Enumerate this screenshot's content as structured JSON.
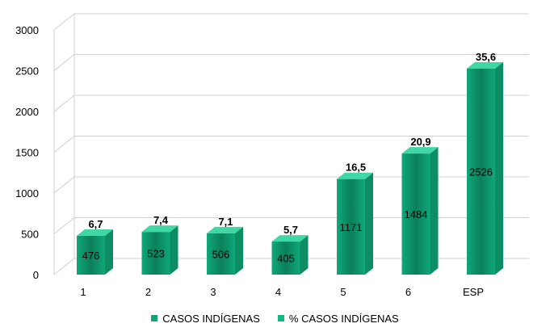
{
  "chart_data": {
    "type": "bar",
    "categories": [
      "1",
      "2",
      "3",
      "4",
      "5",
      "6",
      "ESP"
    ],
    "series": [
      {
        "name": "CASOS INDÍGENAS",
        "values": [
          476,
          523,
          506,
          405,
          1171,
          1484,
          2526
        ]
      },
      {
        "name": "% CASOS INDÍGENAS",
        "values": [
          6.7,
          7.4,
          7.1,
          5.7,
          16.5,
          20.9,
          35.6
        ]
      }
    ],
    "value_labels": [
      "476",
      "523",
      "506",
      "405",
      "1171",
      "1484",
      "2526"
    ],
    "percent_labels": [
      "6,7",
      "7,4",
      "7,1",
      "5,7",
      "16,5",
      "20,9",
      "35,6"
    ],
    "y_ticks": [
      "0",
      "500",
      "1000",
      "1500",
      "2000",
      "2500",
      "3000"
    ],
    "ylim": [
      0,
      3000
    ],
    "grid": true,
    "legend_position": "bottom",
    "colors": {
      "bar_front": "#0fa87a",
      "bar_front_dark": "#0b7f5b",
      "bar_side": "#0c8d63",
      "bar_top": "#3fd8a4",
      "swatch_1": "#10a572",
      "swatch_2": "#12b886",
      "grid": "#d0d0d0"
    }
  }
}
